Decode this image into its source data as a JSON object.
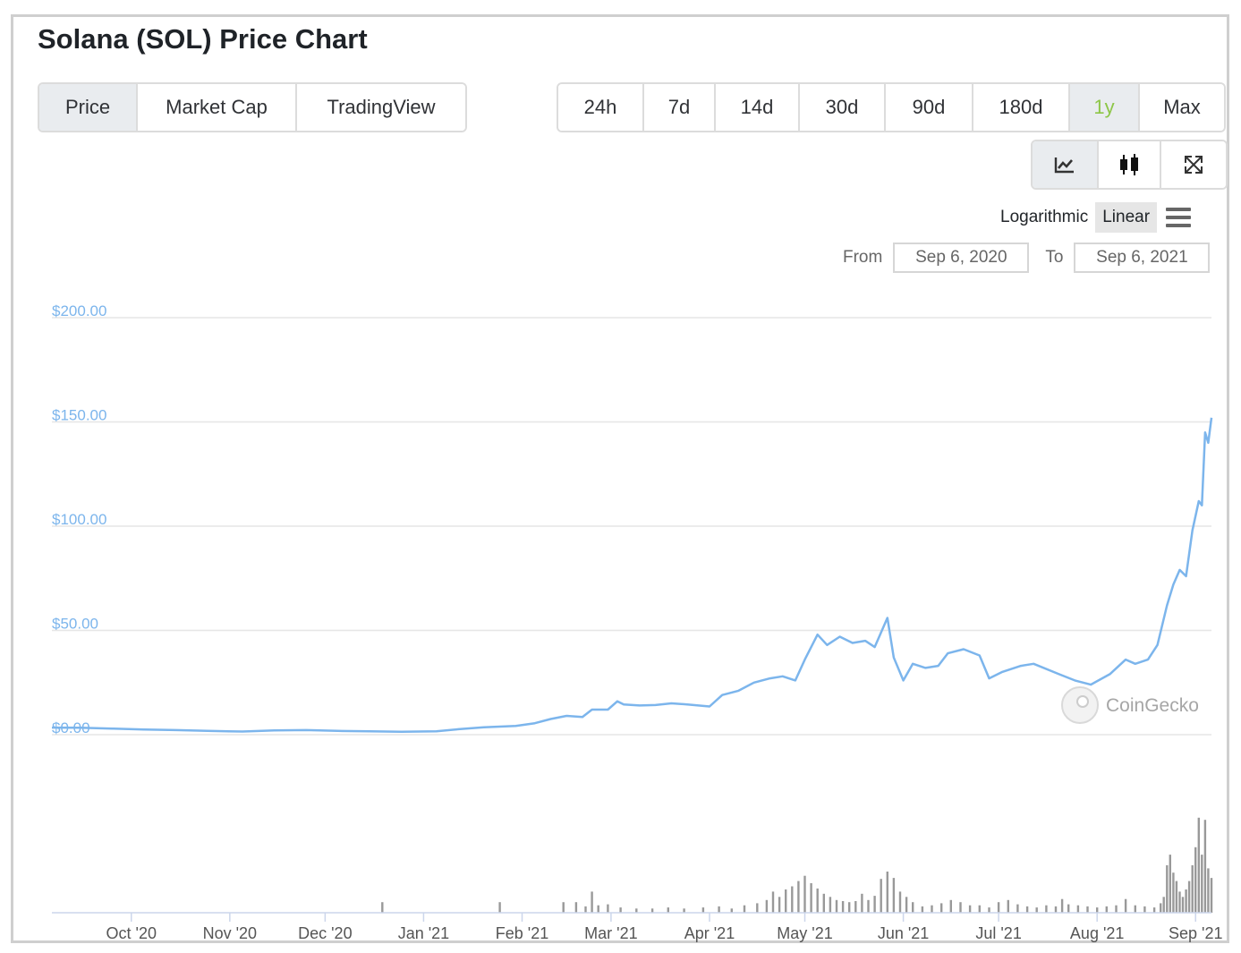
{
  "title": "Solana (SOL) Price Chart",
  "tabs": [
    {
      "label": "Price",
      "active": true
    },
    {
      "label": "Market Cap",
      "active": false
    },
    {
      "label": "TradingView",
      "active": false
    }
  ],
  "ranges": [
    {
      "label": "24h",
      "active": false
    },
    {
      "label": "7d",
      "active": false
    },
    {
      "label": "14d",
      "active": false
    },
    {
      "label": "30d",
      "active": false
    },
    {
      "label": "90d",
      "active": false
    },
    {
      "label": "180d",
      "active": false
    },
    {
      "label": "1y",
      "active": true
    },
    {
      "label": "Max",
      "active": false
    }
  ],
  "chart_types": [
    {
      "icon": "line-chart-icon",
      "active": true
    },
    {
      "icon": "candlestick-icon",
      "active": false
    },
    {
      "icon": "fullscreen-icon",
      "active": false
    }
  ],
  "scale": {
    "log_label": "Logarithmic",
    "linear_label": "Linear",
    "active": "Linear"
  },
  "date_range": {
    "from_label": "From",
    "from_value": "Sep 6, 2020",
    "to_label": "To",
    "to_value": "Sep 6, 2021"
  },
  "watermark": "CoinGecko",
  "colors": {
    "line": "#7cb5ec",
    "volume": "#999999",
    "accent": "#8dc647",
    "grid": "#e6e6e6",
    "axis_label": "#7cb5ec"
  },
  "chart_data": {
    "type": "line",
    "title": "",
    "xlabel": "",
    "ylabel": "",
    "x_range": [
      "2020-09-06",
      "2021-09-06"
    ],
    "ylim": [
      0,
      200
    ],
    "y_ticks": [
      "$0.00",
      "$50.00",
      "$100.00",
      "$150.00",
      "$200.00"
    ],
    "y_tick_values": [
      0,
      50,
      100,
      150,
      200
    ],
    "x_tick_labels": [
      "Oct '20",
      "Nov '20",
      "Dec '20",
      "Jan '21",
      "Feb '21",
      "Mar '21",
      "Apr '21",
      "May '21",
      "Jun '21",
      "Jul '21",
      "Aug '21",
      "Sep '21"
    ],
    "x_tick_dates": [
      "2020-10-01",
      "2020-11-01",
      "2020-12-01",
      "2021-01-01",
      "2021-02-01",
      "2021-03-01",
      "2021-04-01",
      "2021-05-01",
      "2021-06-01",
      "2021-07-01",
      "2021-08-01",
      "2021-09-01"
    ],
    "grid": true,
    "legend": "none",
    "series": [
      {
        "values_xy": [
          [
            "2020-09-06",
            3.4
          ],
          [
            "2020-09-15",
            3.3
          ],
          [
            "2020-09-25",
            2.9
          ],
          [
            "2020-10-05",
            2.5
          ],
          [
            "2020-10-15",
            2.2
          ],
          [
            "2020-10-25",
            1.8
          ],
          [
            "2020-11-05",
            1.5
          ],
          [
            "2020-11-15",
            2.0
          ],
          [
            "2020-11-25",
            2.2
          ],
          [
            "2020-12-05",
            1.8
          ],
          [
            "2020-12-15",
            1.6
          ],
          [
            "2020-12-25",
            1.4
          ],
          [
            "2021-01-05",
            1.6
          ],
          [
            "2021-01-12",
            2.6
          ],
          [
            "2021-01-20",
            3.5
          ],
          [
            "2021-01-30",
            4.2
          ],
          [
            "2021-02-05",
            5.5
          ],
          [
            "2021-02-10",
            7.5
          ],
          [
            "2021-02-15",
            9.0
          ],
          [
            "2021-02-20",
            8.5
          ],
          [
            "2021-02-23",
            12.0
          ],
          [
            "2021-02-28",
            12.0
          ],
          [
            "2021-03-03",
            16.0
          ],
          [
            "2021-03-05",
            14.5
          ],
          [
            "2021-03-10",
            14.0
          ],
          [
            "2021-03-15",
            14.2
          ],
          [
            "2021-03-20",
            15.0
          ],
          [
            "2021-03-25",
            14.5
          ],
          [
            "2021-04-01",
            13.5
          ],
          [
            "2021-04-05",
            19.0
          ],
          [
            "2021-04-10",
            21.0
          ],
          [
            "2021-04-15",
            25.0
          ],
          [
            "2021-04-20",
            27.0
          ],
          [
            "2021-04-24",
            28.0
          ],
          [
            "2021-04-28",
            26.0
          ],
          [
            "2021-05-01",
            36.0
          ],
          [
            "2021-05-05",
            48.0
          ],
          [
            "2021-05-08",
            43.0
          ],
          [
            "2021-05-12",
            47.0
          ],
          [
            "2021-05-16",
            44.0
          ],
          [
            "2021-05-20",
            45.0
          ],
          [
            "2021-05-23",
            42.0
          ],
          [
            "2021-05-27",
            56.0
          ],
          [
            "2021-05-29",
            37.0
          ],
          [
            "2021-06-01",
            26.0
          ],
          [
            "2021-06-04",
            34.0
          ],
          [
            "2021-06-08",
            32.0
          ],
          [
            "2021-06-12",
            33.0
          ],
          [
            "2021-06-15",
            39.0
          ],
          [
            "2021-06-20",
            41.0
          ],
          [
            "2021-06-25",
            38.0
          ],
          [
            "2021-06-28",
            27.0
          ],
          [
            "2021-07-02",
            30.0
          ],
          [
            "2021-07-08",
            33.0
          ],
          [
            "2021-07-12",
            34.0
          ],
          [
            "2021-07-20",
            29.0
          ],
          [
            "2021-07-25",
            26.0
          ],
          [
            "2021-07-30",
            24.0
          ],
          [
            "2021-08-05",
            29.0
          ],
          [
            "2021-08-10",
            36.0
          ],
          [
            "2021-08-13",
            34.0
          ],
          [
            "2021-08-17",
            36.0
          ],
          [
            "2021-08-20",
            43.0
          ],
          [
            "2021-08-23",
            62.0
          ],
          [
            "2021-08-25",
            72.0
          ],
          [
            "2021-08-27",
            79.0
          ],
          [
            "2021-08-29",
            76.0
          ],
          [
            "2021-08-31",
            98.0
          ],
          [
            "2021-09-02",
            112.0
          ],
          [
            "2021-09-03",
            110.0
          ],
          [
            "2021-09-04",
            145.0
          ],
          [
            "2021-09-05",
            140.0
          ],
          [
            "2021-09-06",
            152.0
          ]
        ]
      }
    ],
    "volume_bars": [
      [
        "2020-12-19",
        0.1
      ],
      [
        "2021-01-25",
        0.1
      ],
      [
        "2021-02-14",
        0.1
      ],
      [
        "2021-02-18",
        0.1
      ],
      [
        "2021-02-21",
        0.06
      ],
      [
        "2021-02-23",
        0.2
      ],
      [
        "2021-02-25",
        0.07
      ],
      [
        "2021-02-28",
        0.08
      ],
      [
        "2021-03-04",
        0.05
      ],
      [
        "2021-03-09",
        0.04
      ],
      [
        "2021-03-14",
        0.04
      ],
      [
        "2021-03-19",
        0.05
      ],
      [
        "2021-03-24",
        0.04
      ],
      [
        "2021-03-30",
        0.05
      ],
      [
        "2021-04-04",
        0.06
      ],
      [
        "2021-04-08",
        0.04
      ],
      [
        "2021-04-12",
        0.07
      ],
      [
        "2021-04-16",
        0.09
      ],
      [
        "2021-04-19",
        0.12
      ],
      [
        "2021-04-21",
        0.2
      ],
      [
        "2021-04-23",
        0.15
      ],
      [
        "2021-04-25",
        0.22
      ],
      [
        "2021-04-27",
        0.25
      ],
      [
        "2021-04-29",
        0.3
      ],
      [
        "2021-05-01",
        0.35
      ],
      [
        "2021-05-03",
        0.28
      ],
      [
        "2021-05-05",
        0.23
      ],
      [
        "2021-05-07",
        0.18
      ],
      [
        "2021-05-09",
        0.15
      ],
      [
        "2021-05-11",
        0.12
      ],
      [
        "2021-05-13",
        0.11
      ],
      [
        "2021-05-15",
        0.1
      ],
      [
        "2021-05-17",
        0.11
      ],
      [
        "2021-05-19",
        0.18
      ],
      [
        "2021-05-21",
        0.12
      ],
      [
        "2021-05-23",
        0.16
      ],
      [
        "2021-05-25",
        0.32
      ],
      [
        "2021-05-27",
        0.39
      ],
      [
        "2021-05-29",
        0.33
      ],
      [
        "2021-05-31",
        0.2
      ],
      [
        "2021-06-02",
        0.15
      ],
      [
        "2021-06-04",
        0.1
      ],
      [
        "2021-06-07",
        0.06
      ],
      [
        "2021-06-10",
        0.07
      ],
      [
        "2021-06-13",
        0.09
      ],
      [
        "2021-06-16",
        0.12
      ],
      [
        "2021-06-19",
        0.1
      ],
      [
        "2021-06-22",
        0.07
      ],
      [
        "2021-06-25",
        0.07
      ],
      [
        "2021-06-28",
        0.05
      ],
      [
        "2021-07-01",
        0.1
      ],
      [
        "2021-07-04",
        0.12
      ],
      [
        "2021-07-07",
        0.08
      ],
      [
        "2021-07-10",
        0.06
      ],
      [
        "2021-07-13",
        0.05
      ],
      [
        "2021-07-16",
        0.07
      ],
      [
        "2021-07-19",
        0.06
      ],
      [
        "2021-07-21",
        0.13
      ],
      [
        "2021-07-23",
        0.08
      ],
      [
        "2021-07-26",
        0.07
      ],
      [
        "2021-07-29",
        0.06
      ],
      [
        "2021-08-01",
        0.05
      ],
      [
        "2021-08-04",
        0.06
      ],
      [
        "2021-08-07",
        0.07
      ],
      [
        "2021-08-10",
        0.13
      ],
      [
        "2021-08-13",
        0.07
      ],
      [
        "2021-08-16",
        0.06
      ],
      [
        "2021-08-19",
        0.05
      ],
      [
        "2021-08-21",
        0.09
      ],
      [
        "2021-08-22",
        0.15
      ],
      [
        "2021-08-23",
        0.45
      ],
      [
        "2021-08-24",
        0.55
      ],
      [
        "2021-08-25",
        0.38
      ],
      [
        "2021-08-26",
        0.3
      ],
      [
        "2021-08-27",
        0.2
      ],
      [
        "2021-08-28",
        0.15
      ],
      [
        "2021-08-29",
        0.22
      ],
      [
        "2021-08-30",
        0.3
      ],
      [
        "2021-08-31",
        0.45
      ],
      [
        "2021-09-01",
        0.62
      ],
      [
        "2021-09-02",
        0.9
      ],
      [
        "2021-09-03",
        0.55
      ],
      [
        "2021-09-04",
        0.88
      ],
      [
        "2021-09-05",
        0.42
      ],
      [
        "2021-09-06",
        0.33
      ]
    ]
  }
}
